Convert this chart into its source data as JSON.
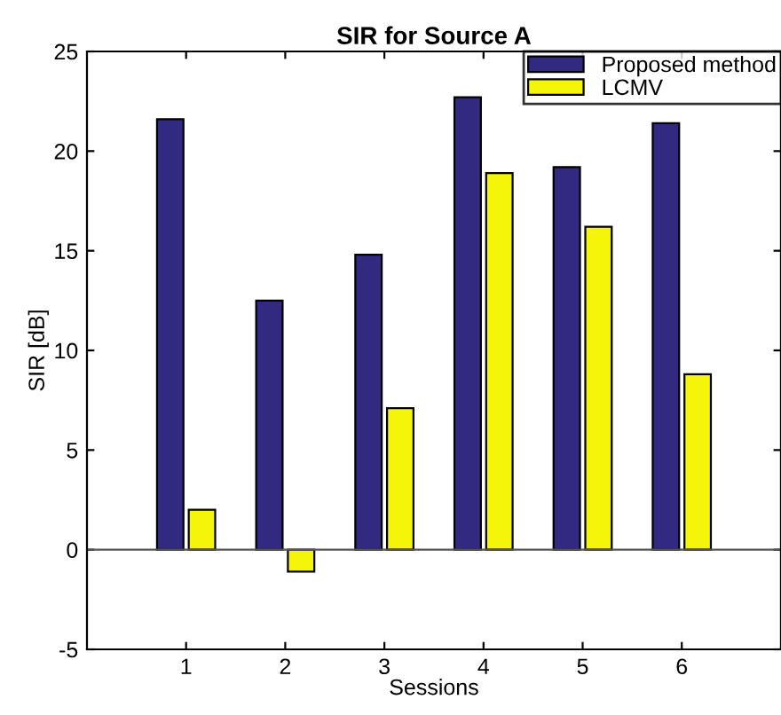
{
  "chart_data": {
    "type": "bar",
    "title": "SIR for Source A",
    "xlabel": "Sessions",
    "ylabel": "SIR [dB]",
    "x": [
      1,
      2,
      3,
      4,
      5,
      6
    ],
    "xlim": [
      0,
      7
    ],
    "xticks": [
      1,
      2,
      3,
      4,
      5,
      6
    ],
    "ylim": [
      -5,
      25
    ],
    "yticks": [
      -5,
      0,
      5,
      10,
      15,
      20,
      25
    ],
    "series": [
      {
        "name": "Proposed method",
        "color": "#312a80",
        "values": [
          21.6,
          12.5,
          14.8,
          22.7,
          19.2,
          21.4
        ]
      },
      {
        "name": "LCMV",
        "color": "#f5f50a",
        "values": [
          2.0,
          -1.1,
          7.1,
          18.9,
          16.2,
          8.8
        ]
      }
    ],
    "ref_lines": [
      {
        "axis": "y",
        "value": 0,
        "color": "#555555"
      }
    ],
    "legend": "top right"
  }
}
